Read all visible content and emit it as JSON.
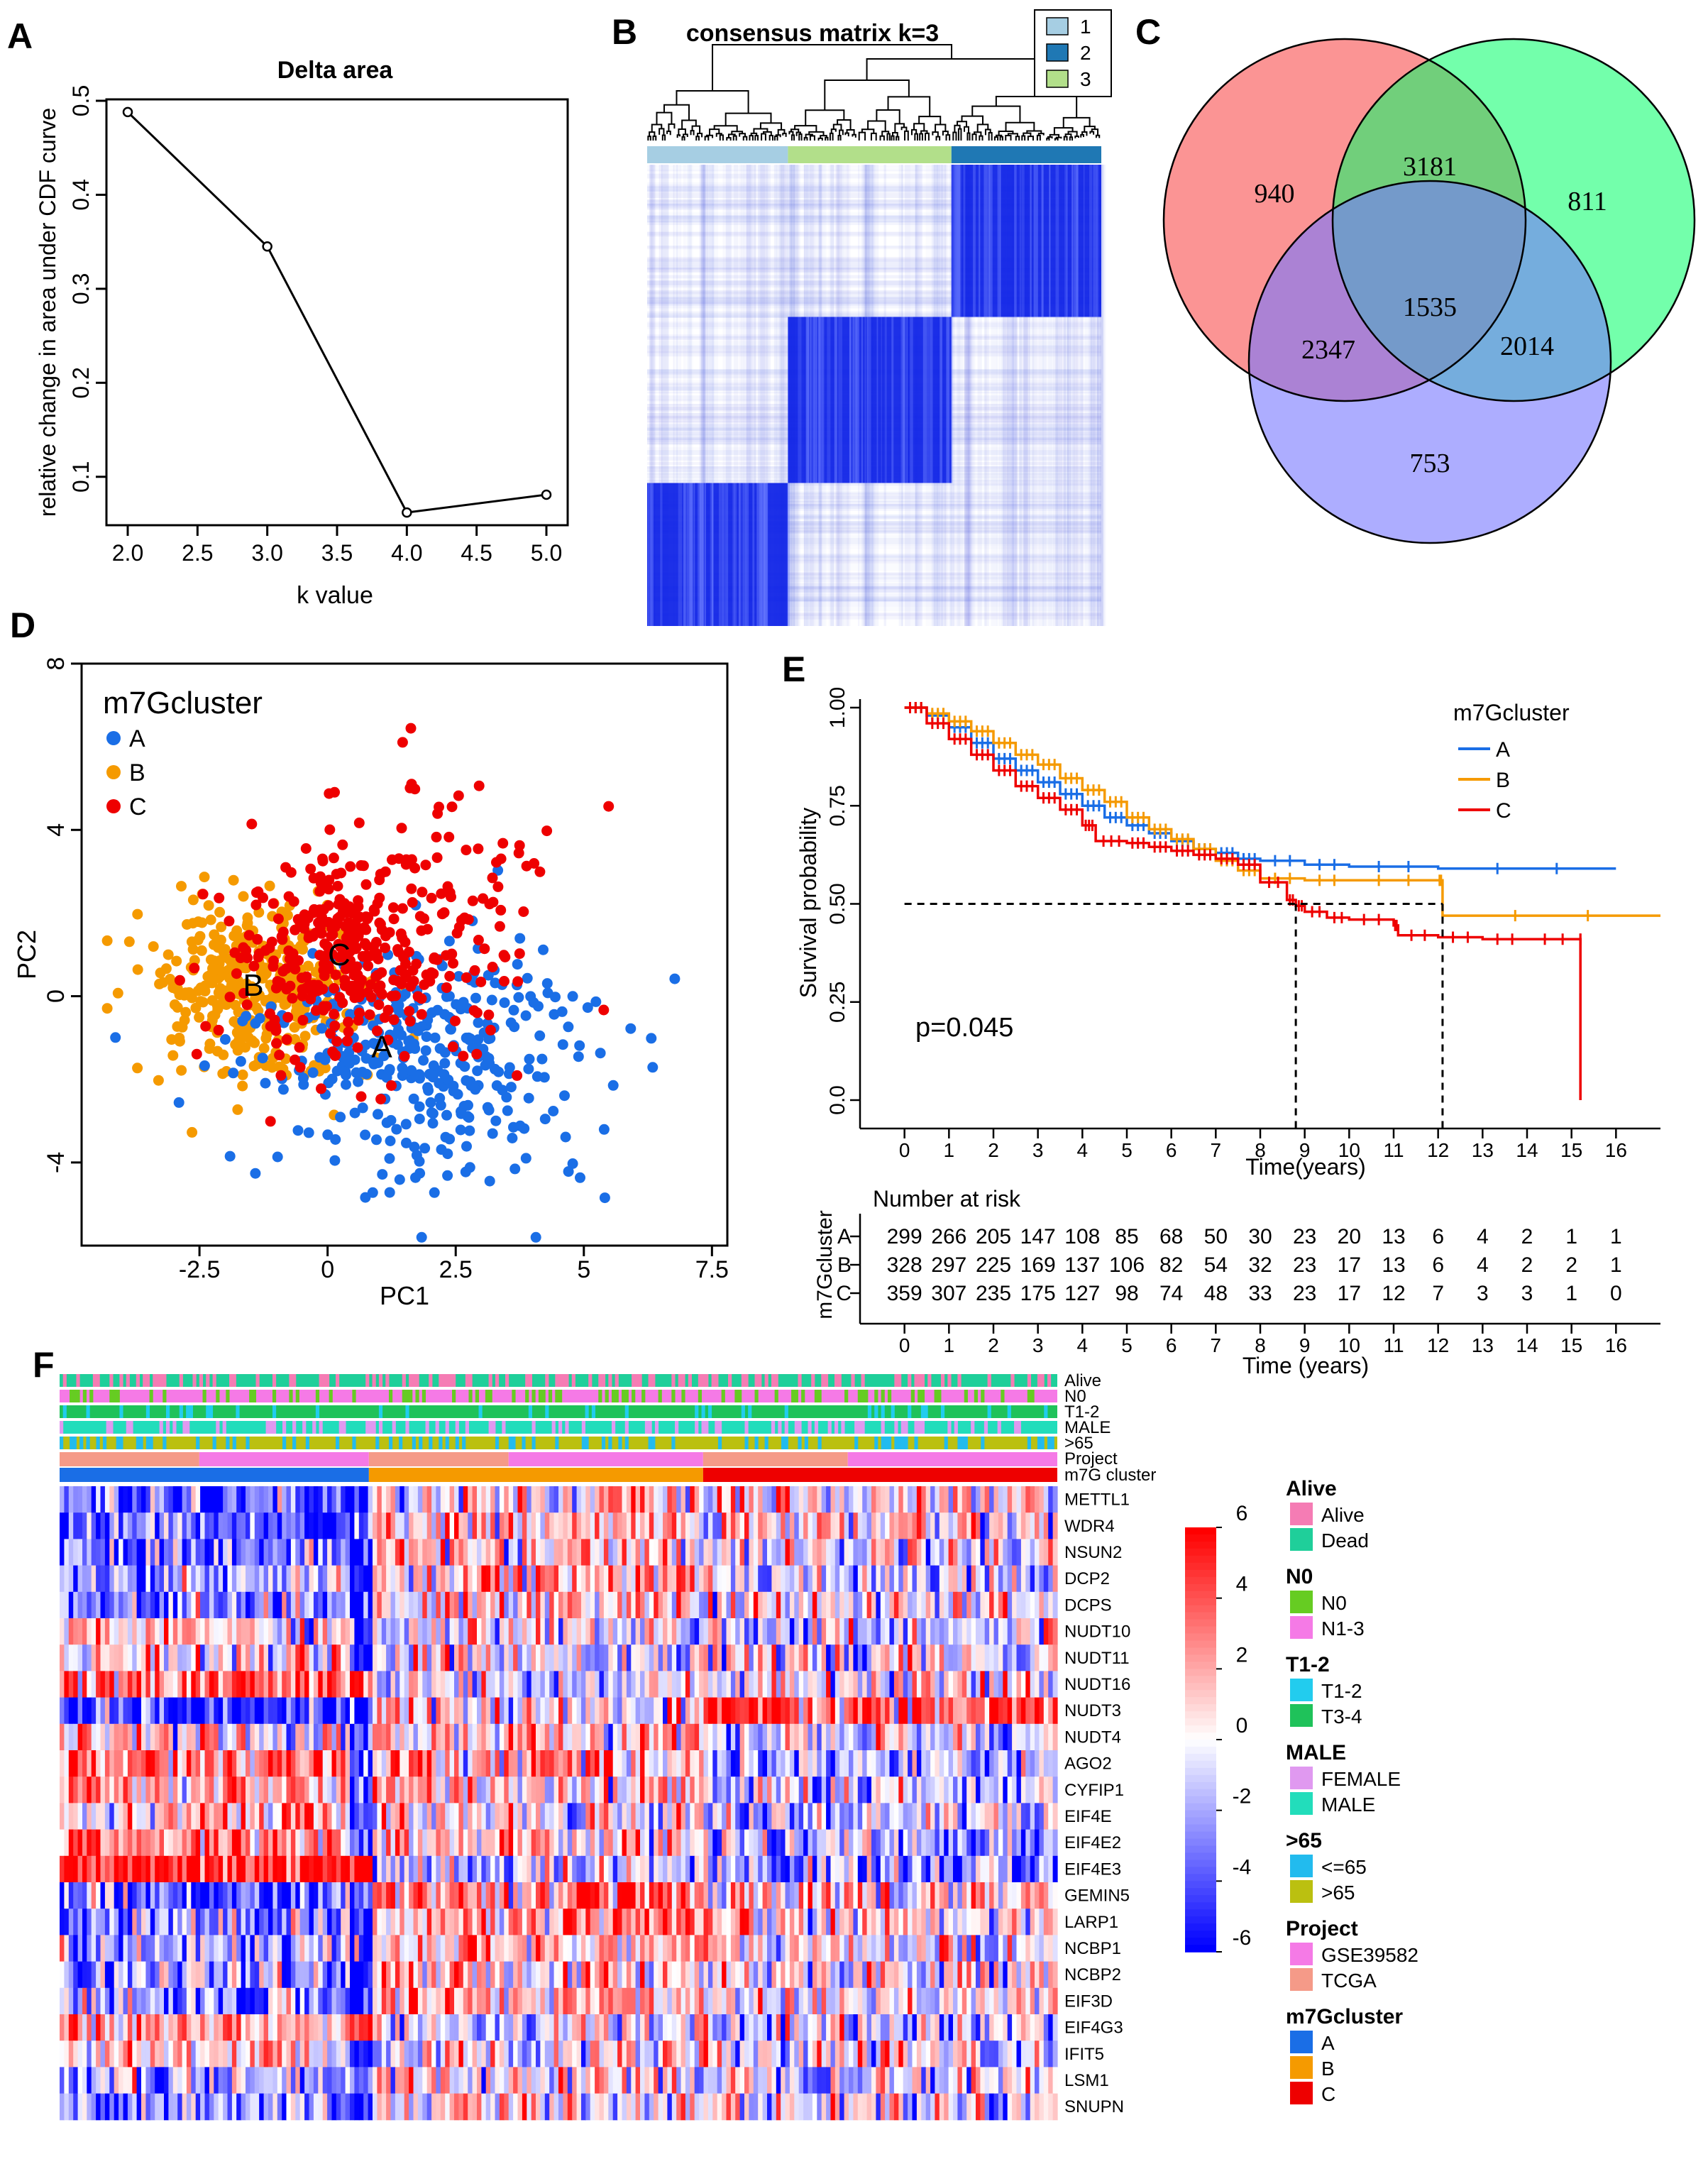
{
  "panels": {
    "a": "A",
    "b": "B",
    "c": "C",
    "d": "D",
    "e": "E",
    "f": "F"
  },
  "chart_data": [
    {
      "id": "A",
      "type": "line",
      "title": "Delta area",
      "xlabel": "k value",
      "ylabel": "relative change in area under CDF curve",
      "x": [
        2,
        3,
        4,
        5
      ],
      "values": [
        0.488,
        0.345,
        0.062,
        0.081
      ],
      "xlim": [
        2,
        5
      ],
      "ylim": [
        0.05,
        0.5
      ],
      "xticks": [
        "2.0",
        "2.5",
        "3.0",
        "3.5",
        "4.0",
        "4.5",
        "5.0"
      ],
      "yticks": [
        "0.1",
        "0.2",
        "0.3",
        "0.4",
        "0.5"
      ]
    },
    {
      "id": "B",
      "type": "heatmap",
      "title": "consensus matrix k=3",
      "legend": [
        {
          "label": "1",
          "color": "#a6cee3"
        },
        {
          "label": "2",
          "color": "#1f78b4"
        },
        {
          "label": "3",
          "color": "#b2df8a"
        }
      ],
      "cluster_order": [
        "1",
        "3",
        "2"
      ],
      "cluster_fractions": [
        0.31,
        0.36,
        0.33
      ]
    },
    {
      "id": "C",
      "type": "venn",
      "regions": {
        "a_only": "940",
        "ab": "3181",
        "b_only": "811",
        "ac": "2347",
        "abc": "1535",
        "bc": "2014",
        "c_only": "753"
      },
      "colors": {
        "a": "#fa7070",
        "b": "#00ff66",
        "c": "#7777ff"
      }
    },
    {
      "id": "D",
      "type": "scatter",
      "legend_title": "m7Gcluster",
      "series": [
        {
          "name": "A",
          "color": "#1a6ee6",
          "center": [
            1.5,
            -1.2
          ],
          "spread": [
            1.5,
            1.3
          ],
          "n": 360,
          "label": "A"
        },
        {
          "name": "B",
          "color": "#f59a00",
          "center": [
            -1.4,
            0.1
          ],
          "spread": [
            1.1,
            1.0
          ],
          "n": 380,
          "label": "B"
        },
        {
          "name": "C",
          "color": "#ee0000",
          "center": [
            0.3,
            0.9
          ],
          "spread": [
            1.2,
            1.3
          ],
          "n": 400,
          "label": "C"
        }
      ],
      "xlabel": "PC1",
      "ylabel": "PC2",
      "xlim": [
        -4.8,
        7.8
      ],
      "ylim": [
        -6,
        8
      ],
      "xticks": [
        "-2.5",
        "0",
        "2.5",
        "5",
        "7.5"
      ],
      "yticks": [
        "-4",
        "0",
        "4",
        "8"
      ]
    },
    {
      "id": "E",
      "type": "line",
      "legend_title": "m7Gcluster",
      "series": [
        {
          "name": "A",
          "color": "#1a6ee6",
          "points": [
            [
              0,
              1.0
            ],
            [
              0.5,
              0.98
            ],
            [
              1,
              0.95
            ],
            [
              1.5,
              0.91
            ],
            [
              2,
              0.87
            ],
            [
              2.5,
              0.84
            ],
            [
              3,
              0.81
            ],
            [
              3.5,
              0.78
            ],
            [
              4,
              0.75
            ],
            [
              4.5,
              0.72
            ],
            [
              5,
              0.7
            ],
            [
              5.5,
              0.68
            ],
            [
              6,
              0.66
            ],
            [
              6.5,
              0.64
            ],
            [
              7,
              0.63
            ],
            [
              7.5,
              0.615
            ],
            [
              8,
              0.61
            ],
            [
              9,
              0.6
            ],
            [
              10,
              0.595
            ],
            [
              12,
              0.59
            ],
            [
              16,
              0.59
            ]
          ]
        },
        {
          "name": "B",
          "color": "#f59a00",
          "points": [
            [
              0,
              1.0
            ],
            [
              0.5,
              0.985
            ],
            [
              1,
              0.965
            ],
            [
              1.5,
              0.94
            ],
            [
              2,
              0.91
            ],
            [
              2.5,
              0.88
            ],
            [
              3,
              0.855
            ],
            [
              3.5,
              0.82
            ],
            [
              4,
              0.79
            ],
            [
              4.5,
              0.76
            ],
            [
              5,
              0.72
            ],
            [
              5.5,
              0.69
            ],
            [
              6,
              0.665
            ],
            [
              6.5,
              0.64
            ],
            [
              7,
              0.61
            ],
            [
              7.5,
              0.585
            ],
            [
              8,
              0.565
            ],
            [
              9,
              0.56
            ],
            [
              10,
              0.56
            ],
            [
              12,
              0.56
            ],
            [
              12.1,
              0.47
            ],
            [
              17,
              0.47
            ]
          ]
        },
        {
          "name": "C",
          "color": "#ee0000",
          "points": [
            [
              0,
              1.0
            ],
            [
              0.5,
              0.96
            ],
            [
              1,
              0.92
            ],
            [
              1.5,
              0.88
            ],
            [
              2,
              0.84
            ],
            [
              2.5,
              0.8
            ],
            [
              3,
              0.77
            ],
            [
              3.5,
              0.74
            ],
            [
              4,
              0.7
            ],
            [
              4.3,
              0.66
            ],
            [
              5,
              0.655
            ],
            [
              5.5,
              0.645
            ],
            [
              6,
              0.635
            ],
            [
              6.5,
              0.625
            ],
            [
              7,
              0.615
            ],
            [
              7.5,
              0.6
            ],
            [
              8,
              0.555
            ],
            [
              8.6,
              0.51
            ],
            [
              8.8,
              0.495
            ],
            [
              9,
              0.48
            ],
            [
              9.5,
              0.465
            ],
            [
              10,
              0.46
            ],
            [
              11,
              0.445
            ],
            [
              11.1,
              0.42
            ],
            [
              12,
              0.415
            ],
            [
              13,
              0.41
            ],
            [
              14,
              0.41
            ],
            [
              15.2,
              0.41
            ],
            [
              15.2,
              0.0
            ]
          ]
        }
      ],
      "median_lines": [
        8.8,
        12.1
      ],
      "pvalue": "p=0.045",
      "xlabel": "Time(years)",
      "ylabel": "Survival probability",
      "xlim": [
        -1,
        17
      ],
      "ylim": [
        0,
        1
      ],
      "xticks": [
        "0",
        "1",
        "2",
        "3",
        "4",
        "5",
        "6",
        "7",
        "8",
        "9",
        "10",
        "11",
        "12",
        "13",
        "14",
        "15",
        "16"
      ],
      "yticks": [
        "0.0",
        "0.25",
        "0.50",
        "0.75",
        "1.00"
      ]
    },
    {
      "id": "E-risk",
      "type": "table",
      "title": "Number at risk",
      "ylabel": "m7Gcluster",
      "xlabel": "Time (years)",
      "times": [
        "0",
        "1",
        "2",
        "3",
        "4",
        "5",
        "6",
        "7",
        "8",
        "9",
        "10",
        "11",
        "12",
        "13",
        "14",
        "15",
        "16"
      ],
      "rows": [
        {
          "name": "A",
          "color": "#1a6ee6",
          "values": [
            "299",
            "266",
            "205",
            "147",
            "108",
            "85",
            "68",
            "50",
            "30",
            "23",
            "20",
            "13",
            "6",
            "4",
            "2",
            "1",
            "1"
          ]
        },
        {
          "name": "B",
          "color": "#f59a00",
          "values": [
            "328",
            "297",
            "225",
            "169",
            "137",
            "106",
            "82",
            "54",
            "32",
            "23",
            "17",
            "13",
            "6",
            "4",
            "2",
            "2",
            "1"
          ]
        },
        {
          "name": "C",
          "color": "#ee0000",
          "values": [
            "359",
            "307",
            "235",
            "175",
            "127",
            "98",
            "74",
            "48",
            "33",
            "23",
            "17",
            "12",
            "7",
            "3",
            "3",
            "1",
            "0"
          ]
        }
      ]
    },
    {
      "id": "F",
      "type": "heatmap",
      "annotation_rows": [
        "Alive",
        "N0",
        "T1-2",
        "MALE",
        ">65",
        "Project",
        "m7G cluster"
      ],
      "genes": [
        "METTL1",
        "WDR4",
        "NSUN2",
        "DCP2",
        "DCPS",
        "NUDT10",
        "NUDT11",
        "NUDT16",
        "NUDT3",
        "NUDT4",
        "AGO2",
        "CYFIP1",
        "EIF4E",
        "EIF4E2",
        "EIF4E3",
        "GEMIN5",
        "LARP1",
        "NCBP1",
        "NCBP2",
        "EIF3D",
        "EIF4G3",
        "IFIT5",
        "LSM1",
        "SNUPN"
      ],
      "colorbar_ticks": [
        "6",
        "4",
        "2",
        "0",
        "-2",
        "-4",
        "-6"
      ],
      "colorbar_range": [
        -6,
        6
      ],
      "cluster_fractions": [
        0.31,
        0.335,
        0.355
      ],
      "legend": [
        {
          "title": "Alive",
          "items": [
            {
              "label": "Alive",
              "color": "#f57cb4"
            },
            {
              "label": "Dead",
              "color": "#1fcf9a"
            }
          ]
        },
        {
          "title": "N0",
          "items": [
            {
              "label": "N0",
              "color": "#66cc22"
            },
            {
              "label": "N1-3",
              "color": "#f57ae6"
            }
          ]
        },
        {
          "title": "T1-2",
          "items": [
            {
              "label": "T1-2",
              "color": "#22ccee"
            },
            {
              "label": "T3-4",
              "color": "#1fc25a"
            }
          ]
        },
        {
          "title": "MALE",
          "items": [
            {
              "label": "FEMALE",
              "color": "#e099f0"
            },
            {
              "label": "MALE",
              "color": "#22ddbb"
            }
          ]
        },
        {
          "title": ">65",
          "items": [
            {
              "label": "<=65",
              "color": "#22bbee"
            },
            {
              "label": ">65",
              "color": "#bbc010"
            }
          ]
        },
        {
          "title": "Project",
          "items": [
            {
              "label": "GSE39582",
              "color": "#f57ae6"
            },
            {
              "label": "TCGA",
              "color": "#f59a88"
            }
          ]
        },
        {
          "title": "m7Gcluster",
          "items": [
            {
              "label": "A",
              "color": "#1a6ee6"
            },
            {
              "label": "B",
              "color": "#f59a00"
            },
            {
              "label": "C",
              "color": "#ee0000"
            }
          ]
        }
      ]
    }
  ]
}
